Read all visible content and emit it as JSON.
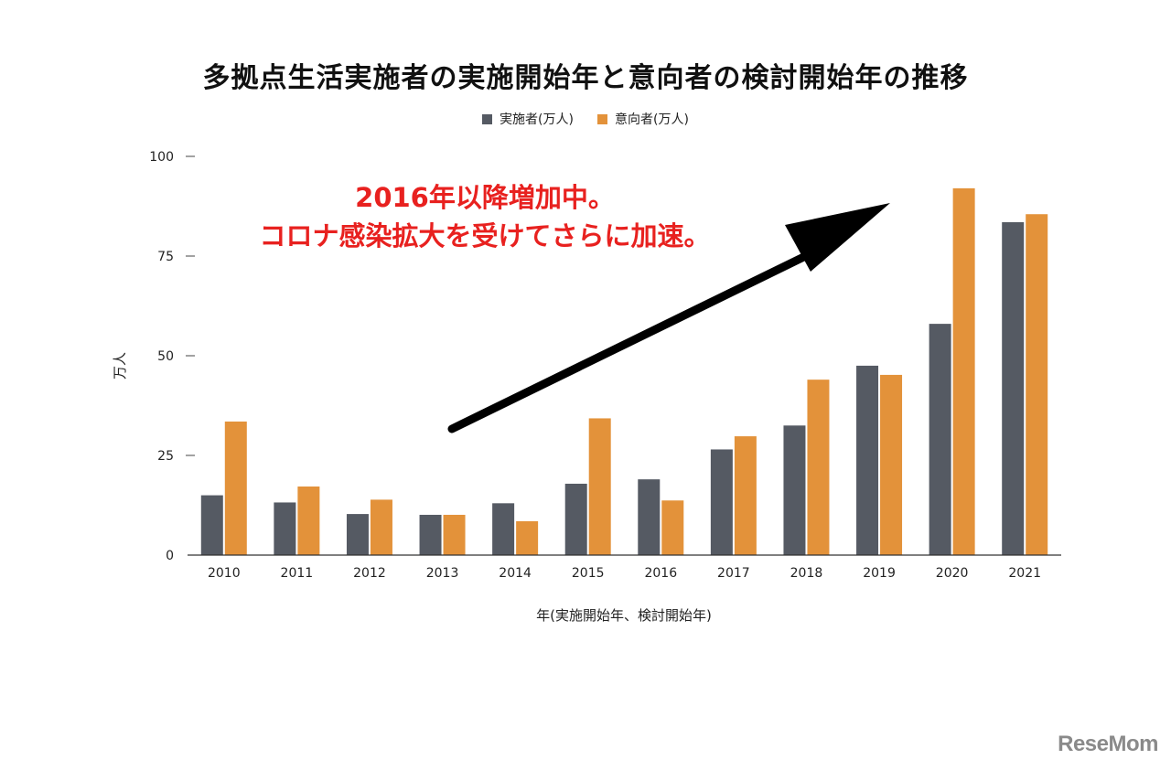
{
  "chart_data": {
    "type": "bar",
    "title": "多拠点生活実施者の実施開始年と意向者の検討開始年の推移",
    "xlabel": "年(実施開始年、検討開始年)",
    "ylabel": "万人",
    "ylim": [
      0,
      100
    ],
    "yticks": [
      0,
      25,
      50,
      75,
      100
    ],
    "categories": [
      "2010",
      "2011",
      "2012",
      "2013",
      "2014",
      "2015",
      "2016",
      "2017",
      "2018",
      "2019",
      "2020",
      "2021"
    ],
    "series": [
      {
        "name": "実施者(万人)",
        "color": "#555a63",
        "values": [
          15,
          13.2,
          10.3,
          10.1,
          13,
          17.9,
          19,
          26.5,
          32.5,
          47.5,
          58,
          83.5
        ]
      },
      {
        "name": "意向者(万人)",
        "color": "#e3923a",
        "values": [
          33.5,
          17.2,
          13.9,
          10.1,
          8.5,
          34.3,
          13.7,
          29.8,
          44,
          45.2,
          92,
          85.5
        ]
      }
    ],
    "legend_position": "top-center",
    "grid": false
  },
  "annotation": {
    "line1": "2016年以降増加中。",
    "line2": "コロナ感染拡大を受けてさらに加速。",
    "color": "#e8211f"
  },
  "logo": "ReseMom"
}
